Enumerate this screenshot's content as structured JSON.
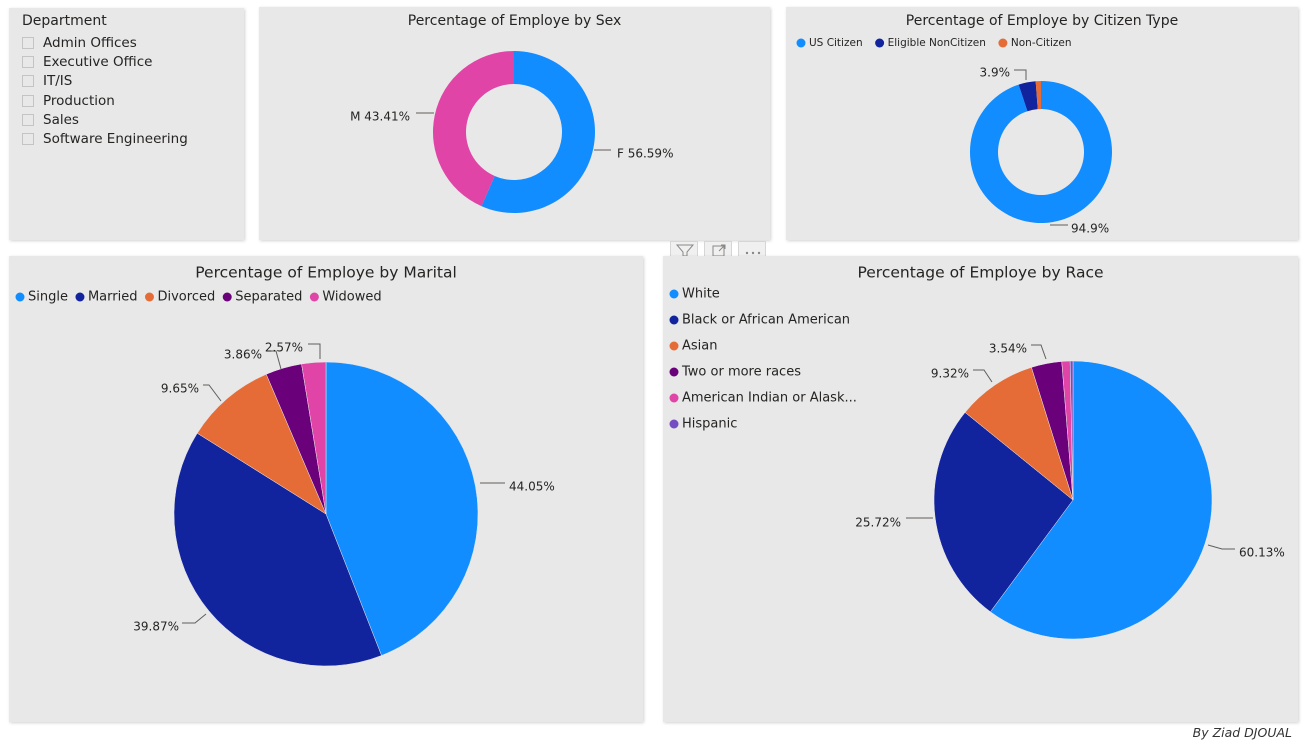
{
  "slicer": {
    "title": "Department",
    "items": [
      "Admin Offices",
      "Executive Office",
      "IT/IS",
      "Production",
      "Sales",
      "Software Engineering"
    ]
  },
  "toolbar": {
    "icons": [
      "filter-icon",
      "focus-mode-icon",
      "more-options-icon"
    ]
  },
  "credit": "By Ziad DJOUAL",
  "chart_data": [
    {
      "id": "sex",
      "type": "donut",
      "title": "Percentage of Employe by Sex",
      "slices": [
        {
          "name": "F",
          "value": 56.59,
          "label": "F 56.59%",
          "color": "#118DFF"
        },
        {
          "name": "M",
          "value": 43.41,
          "label": "M 43.41%",
          "color": "#E044A7"
        }
      ]
    },
    {
      "id": "citizen",
      "type": "donut",
      "title": "Percentage of Employe by Citizen Type",
      "legend": [
        "US Citizen",
        "Eligible NonCitizen",
        "Non-Citizen"
      ],
      "legend_position": "top-left",
      "slices": [
        {
          "name": "US Citizen",
          "value": 94.9,
          "label": "94.9%",
          "color": "#118DFF"
        },
        {
          "name": "Eligible NonCitizen",
          "value": 3.9,
          "label": "3.9%",
          "color": "#12239E"
        },
        {
          "name": "Non-Citizen",
          "value": 1.2,
          "label": "",
          "color": "#E66C37"
        }
      ]
    },
    {
      "id": "marital",
      "type": "pie",
      "title": "Percentage of Employe by Marital",
      "legend": [
        "Single",
        "Married",
        "Divorced",
        "Separated",
        "Widowed"
      ],
      "legend_position": "top-left",
      "slices": [
        {
          "name": "Single",
          "value": 44.05,
          "label": "44.05%",
          "color": "#118DFF"
        },
        {
          "name": "Married",
          "value": 39.87,
          "label": "39.87%",
          "color": "#12239E"
        },
        {
          "name": "Divorced",
          "value": 9.65,
          "label": "9.65%",
          "color": "#E66C37"
        },
        {
          "name": "Separated",
          "value": 3.86,
          "label": "3.86%",
          "color": "#6B007B"
        },
        {
          "name": "Widowed",
          "value": 2.57,
          "label": "2.57%",
          "color": "#E044A7"
        }
      ]
    },
    {
      "id": "race",
      "type": "pie",
      "title": "Percentage of Employe by Race",
      "legend": [
        "White",
        "Black or African American",
        "Asian",
        "Two or more races",
        "American Indian or Alask...",
        "Hispanic"
      ],
      "legend_position": "left",
      "slices": [
        {
          "name": "White",
          "value": 60.13,
          "label": "60.13%",
          "color": "#118DFF"
        },
        {
          "name": "Black or African American",
          "value": 25.72,
          "label": "25.72%",
          "color": "#12239E"
        },
        {
          "name": "Asian",
          "value": 9.32,
          "label": "9.32%",
          "color": "#E66C37"
        },
        {
          "name": "Two or more races",
          "value": 3.54,
          "label": "3.54%",
          "color": "#6B007B"
        },
        {
          "name": "American Indian or Alask...",
          "value": 0.96,
          "label": "",
          "color": "#E044A7"
        },
        {
          "name": "Hispanic",
          "value": 0.33,
          "label": "",
          "color": "#744EC2"
        }
      ]
    }
  ]
}
